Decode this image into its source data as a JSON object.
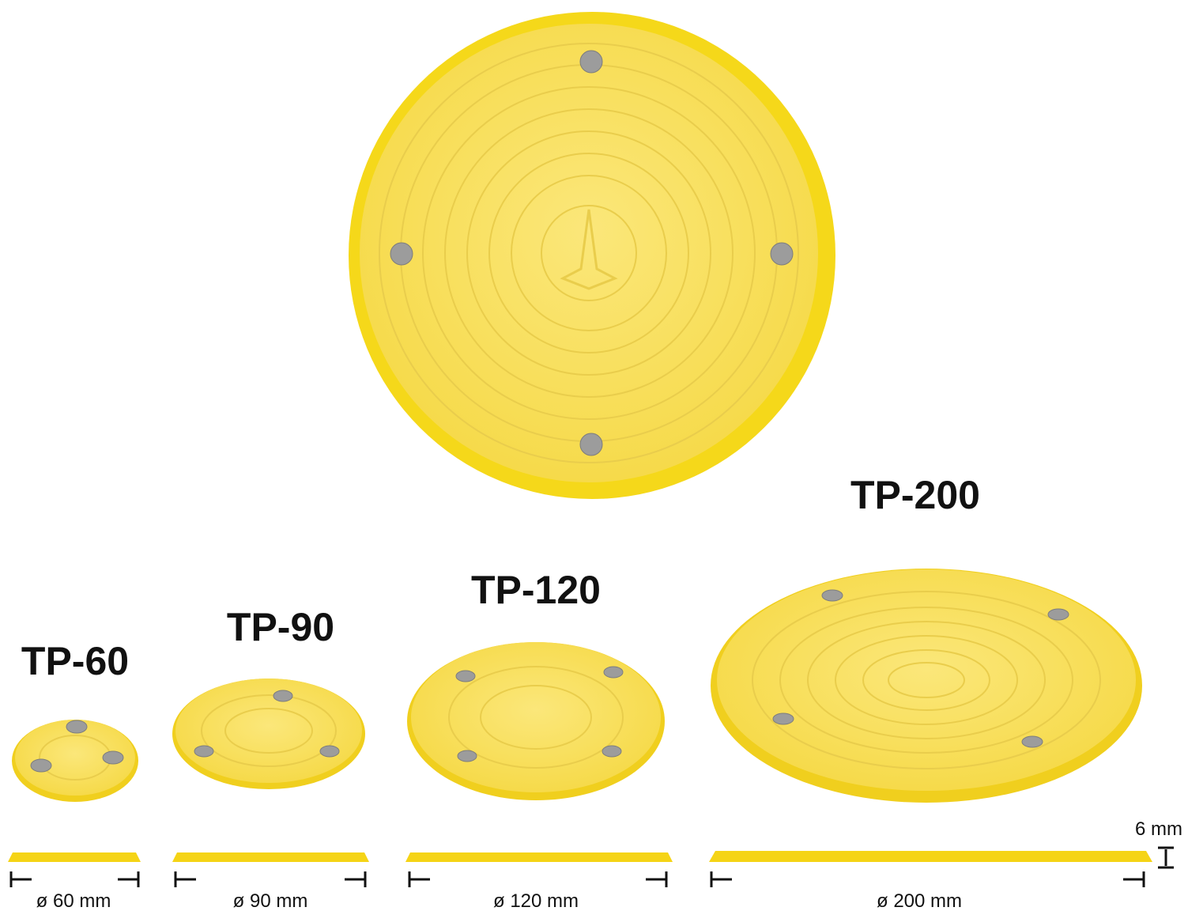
{
  "products": [
    {
      "name": "TP-60",
      "diameter": "ø 60 mm"
    },
    {
      "name": "TP-90",
      "diameter": "ø 90 mm"
    },
    {
      "name": "TP-120",
      "diameter": "ø 120 mm"
    },
    {
      "name": "TP-200",
      "diameter": "ø 200 mm"
    }
  ],
  "thickness": "6 mm"
}
